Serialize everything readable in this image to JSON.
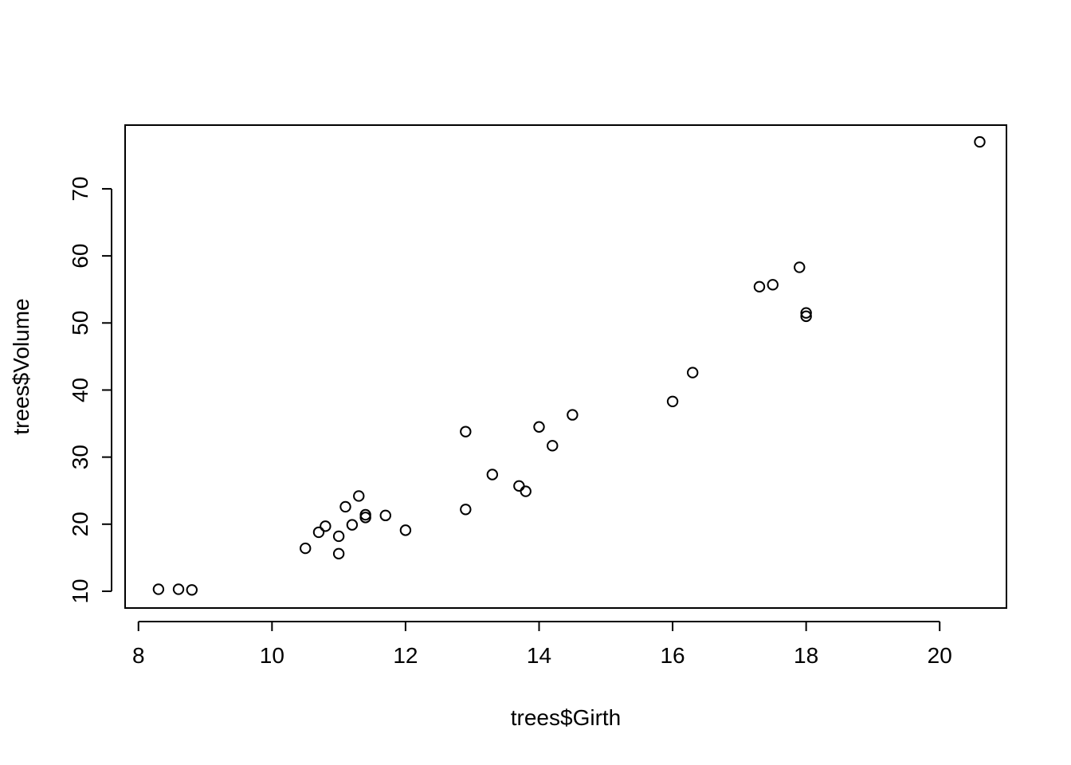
{
  "chart_data": {
    "type": "scatter",
    "title": "",
    "xlabel": "trees$Girth",
    "ylabel": "trees$Volume",
    "xlim": [
      7.8,
      21.0
    ],
    "ylim": [
      7.5,
      79.5
    ],
    "x_ticks": [
      8,
      10,
      12,
      14,
      16,
      18,
      20
    ],
    "y_ticks": [
      10,
      20,
      30,
      40,
      50,
      60,
      70
    ],
    "grid": false,
    "legend": "none",
    "marker": "open-circle",
    "colors": {
      "point": "#000000",
      "axis": "#000000",
      "background": "#ffffff"
    },
    "points": [
      {
        "x": 8.3,
        "y": 10.3
      },
      {
        "x": 8.6,
        "y": 10.3
      },
      {
        "x": 8.8,
        "y": 10.2
      },
      {
        "x": 10.5,
        "y": 16.4
      },
      {
        "x": 10.7,
        "y": 18.8
      },
      {
        "x": 10.8,
        "y": 19.7
      },
      {
        "x": 11.0,
        "y": 15.6
      },
      {
        "x": 11.0,
        "y": 18.2
      },
      {
        "x": 11.1,
        "y": 22.6
      },
      {
        "x": 11.2,
        "y": 19.9
      },
      {
        "x": 11.3,
        "y": 24.2
      },
      {
        "x": 11.4,
        "y": 21.0
      },
      {
        "x": 11.4,
        "y": 21.4
      },
      {
        "x": 11.7,
        "y": 21.3
      },
      {
        "x": 12.0,
        "y": 19.1
      },
      {
        "x": 12.9,
        "y": 22.2
      },
      {
        "x": 12.9,
        "y": 33.8
      },
      {
        "x": 13.3,
        "y": 27.4
      },
      {
        "x": 13.7,
        "y": 25.7
      },
      {
        "x": 13.8,
        "y": 24.9
      },
      {
        "x": 14.0,
        "y": 34.5
      },
      {
        "x": 14.2,
        "y": 31.7
      },
      {
        "x": 14.5,
        "y": 36.3
      },
      {
        "x": 16.0,
        "y": 38.3
      },
      {
        "x": 16.3,
        "y": 42.6
      },
      {
        "x": 17.3,
        "y": 55.4
      },
      {
        "x": 17.5,
        "y": 55.7
      },
      {
        "x": 17.9,
        "y": 58.3
      },
      {
        "x": 18.0,
        "y": 51.5
      },
      {
        "x": 18.0,
        "y": 51.0
      },
      {
        "x": 20.6,
        "y": 77.0
      }
    ]
  }
}
